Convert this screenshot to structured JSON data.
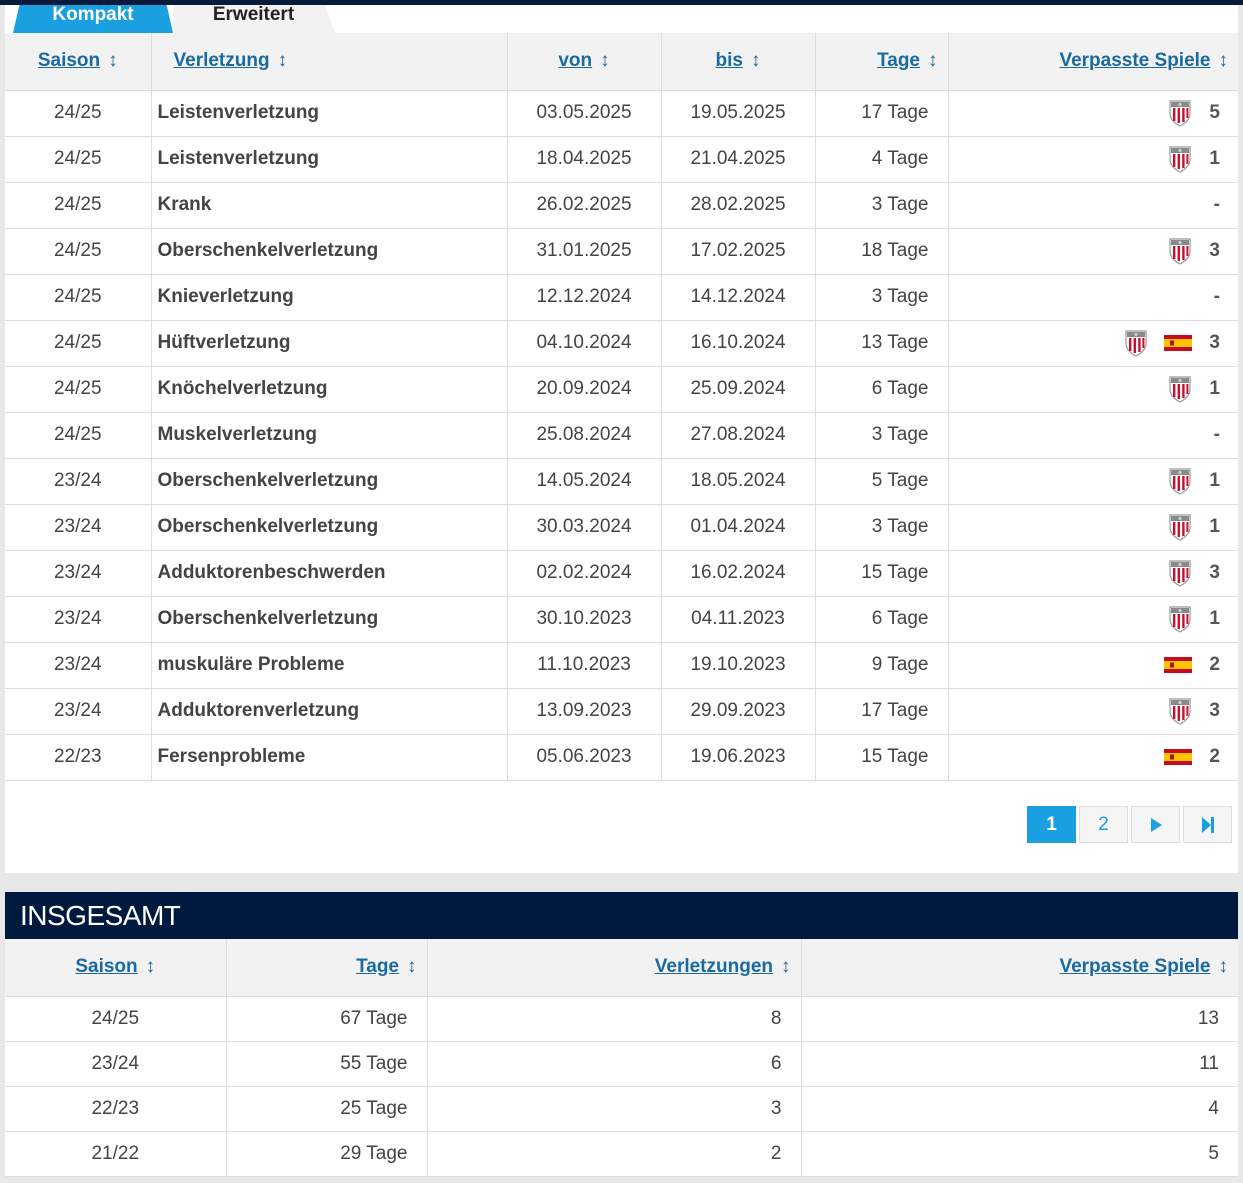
{
  "tabs": {
    "compact": "Kompakt",
    "extended": "Erweitert"
  },
  "injuries": {
    "headers": {
      "season": "Saison",
      "injury": "Verletzung",
      "from": "von",
      "until": "bis",
      "days": "Tage",
      "missed": "Verpasste Spiele"
    },
    "sort_glyph": "↕",
    "rows": [
      {
        "season": "24/25",
        "injury": "Leistenverletzung",
        "from": "03.05.2025",
        "until": "19.05.2025",
        "days": "17 Tage",
        "icons": [
          "club-crest-icon"
        ],
        "missed": "5"
      },
      {
        "season": "24/25",
        "injury": "Leistenverletzung",
        "from": "18.04.2025",
        "until": "21.04.2025",
        "days": "4 Tage",
        "icons": [
          "club-crest-icon"
        ],
        "missed": "1"
      },
      {
        "season": "24/25",
        "injury": "Krank",
        "from": "26.02.2025",
        "until": "28.02.2025",
        "days": "3 Tage",
        "icons": [],
        "missed": "-"
      },
      {
        "season": "24/25",
        "injury": "Oberschenkelverletzung",
        "from": "31.01.2025",
        "until": "17.02.2025",
        "days": "18 Tage",
        "icons": [
          "club-crest-icon"
        ],
        "missed": "3"
      },
      {
        "season": "24/25",
        "injury": "Knieverletzung",
        "from": "12.12.2024",
        "until": "14.12.2024",
        "days": "3 Tage",
        "icons": [],
        "missed": "-"
      },
      {
        "season": "24/25",
        "injury": "Hüftverletzung",
        "from": "04.10.2024",
        "until": "16.10.2024",
        "days": "13 Tage",
        "icons": [
          "club-crest-icon",
          "spain-flag-icon"
        ],
        "missed": "3"
      },
      {
        "season": "24/25",
        "injury": "Knöchelverletzung",
        "from": "20.09.2024",
        "until": "25.09.2024",
        "days": "6 Tage",
        "icons": [
          "club-crest-icon"
        ],
        "missed": "1"
      },
      {
        "season": "24/25",
        "injury": "Muskelverletzung",
        "from": "25.08.2024",
        "until": "27.08.2024",
        "days": "3 Tage",
        "icons": [],
        "missed": "-"
      },
      {
        "season": "23/24",
        "injury": "Oberschenkelverletzung",
        "from": "14.05.2024",
        "until": "18.05.2024",
        "days": "5 Tage",
        "icons": [
          "club-crest-icon"
        ],
        "missed": "1"
      },
      {
        "season": "23/24",
        "injury": "Oberschenkelverletzung",
        "from": "30.03.2024",
        "until": "01.04.2024",
        "days": "3 Tage",
        "icons": [
          "club-crest-icon"
        ],
        "missed": "1"
      },
      {
        "season": "23/24",
        "injury": "Adduktorenbeschwerden",
        "from": "02.02.2024",
        "until": "16.02.2024",
        "days": "15 Tage",
        "icons": [
          "club-crest-icon"
        ],
        "missed": "3"
      },
      {
        "season": "23/24",
        "injury": "Oberschenkelverletzung",
        "from": "30.10.2023",
        "until": "04.11.2023",
        "days": "6 Tage",
        "icons": [
          "club-crest-icon"
        ],
        "missed": "1"
      },
      {
        "season": "23/24",
        "injury": "muskuläre Probleme",
        "from": "11.10.2023",
        "until": "19.10.2023",
        "days": "9 Tage",
        "icons": [
          "spain-flag-icon"
        ],
        "missed": "2"
      },
      {
        "season": "23/24",
        "injury": "Adduktorenverletzung",
        "from": "13.09.2023",
        "until": "29.09.2023",
        "days": "17 Tage",
        "icons": [
          "club-crest-icon"
        ],
        "missed": "3"
      },
      {
        "season": "22/23",
        "injury": "Fersenprobleme",
        "from": "05.06.2023",
        "until": "19.06.2023",
        "days": "15 Tage",
        "icons": [
          "spain-flag-icon"
        ],
        "missed": "2"
      }
    ]
  },
  "pagination": {
    "pages": [
      "1",
      "2"
    ],
    "current": "1",
    "next_glyph": "▶",
    "last_glyph": "▶|"
  },
  "totals": {
    "title": "INSGESAMT",
    "headers": {
      "season": "Saison",
      "days": "Tage",
      "injuries": "Verletzungen",
      "missed": "Verpasste Spiele"
    },
    "rows": [
      {
        "season": "24/25",
        "days": "67 Tage",
        "injuries": "8",
        "missed": "13"
      },
      {
        "season": "23/24",
        "days": "55 Tage",
        "injuries": "6",
        "missed": "11"
      },
      {
        "season": "22/23",
        "days": "25 Tage",
        "injuries": "3",
        "missed": "4"
      },
      {
        "season": "21/22",
        "days": "29 Tage",
        "injuries": "2",
        "missed": "5"
      }
    ]
  },
  "colors": {
    "accent": "#1a9fe0",
    "link": "#1a6aa0",
    "header_dark": "#001a3f"
  }
}
